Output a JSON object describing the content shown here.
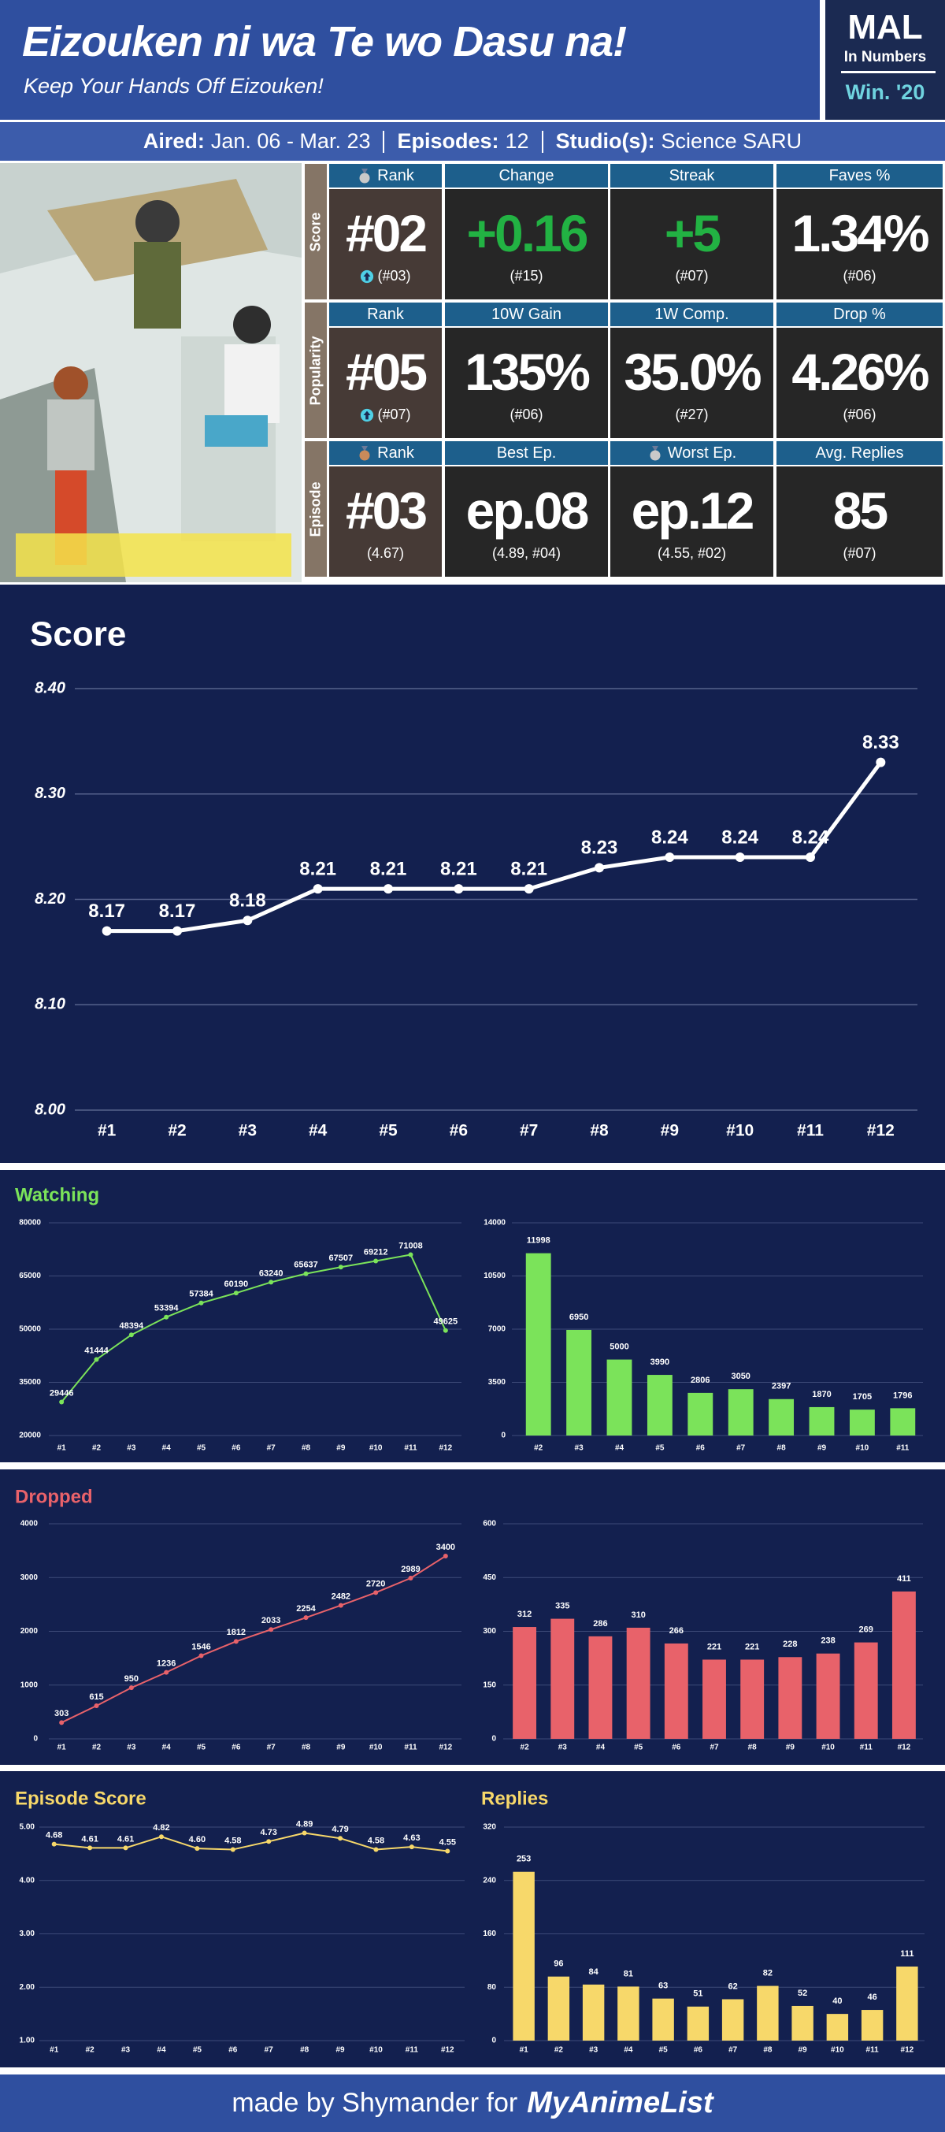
{
  "header": {
    "title": "Eizouken ni wa Te wo Dasu na!",
    "subtitle": "Keep Your Hands Off Eizouken!",
    "logo": {
      "line1": "MAL",
      "line2": "In Numbers",
      "season": "Win. '20"
    }
  },
  "info": [
    {
      "label": "Aired:",
      "value": "Jan. 06 - Mar. 23"
    },
    {
      "label": "Episodes:",
      "value": "12"
    },
    {
      "label": "Studio(s):",
      "value": "Science SARU"
    }
  ],
  "stats": {
    "rows": [
      {
        "label": "Score",
        "cells": [
          {
            "header": "Rank",
            "icon": "medal-silver",
            "value": "#02",
            "sub": "(#03)",
            "sub_icon": "arrow-up"
          },
          {
            "header": "Change",
            "value": "+0.16",
            "sub": "(#15)",
            "color": "#22b243"
          },
          {
            "header": "Streak",
            "value": "+5",
            "sub": "(#07)",
            "color": "#22b243"
          },
          {
            "header": "Faves %",
            "value": "1.34%",
            "sub": "(#06)"
          }
        ]
      },
      {
        "label": "Popularity",
        "cells": [
          {
            "header": "Rank",
            "value": "#05",
            "sub": "(#07)",
            "sub_icon": "arrow-up"
          },
          {
            "header": "10W Gain",
            "value": "135%",
            "sub": "(#06)"
          },
          {
            "header": "1W Comp.",
            "value": "35.0%",
            "sub": "(#27)"
          },
          {
            "header": "Drop %",
            "value": "4.26%",
            "sub": "(#06)"
          }
        ]
      },
      {
        "label": "Episode",
        "cells": [
          {
            "header": "Rank",
            "icon": "medal-bronze",
            "value": "#03",
            "sub": "(4.67)"
          },
          {
            "header": "Best Ep.",
            "value": "ep.08",
            "sub": "(4.89, #04)"
          },
          {
            "header": "Worst Ep.",
            "icon": "medal-silver",
            "value": "ep.12",
            "sub": "(4.55, #02)"
          },
          {
            "header": "Avg. Replies",
            "value": "85",
            "sub": "(#07)"
          }
        ]
      }
    ]
  },
  "chart_data": [
    {
      "type": "line",
      "title": "Score",
      "color": "#ffffff",
      "grid": true,
      "categories": [
        "#1",
        "#2",
        "#3",
        "#4",
        "#5",
        "#6",
        "#7",
        "#8",
        "#9",
        "#10",
        "#11",
        "#12"
      ],
      "values": [
        8.17,
        8.17,
        8.18,
        8.21,
        8.21,
        8.21,
        8.21,
        8.23,
        8.24,
        8.24,
        8.24,
        8.33
      ],
      "ylim": [
        8.0,
        8.4
      ],
      "yticks": [
        {
          "value": 8.0,
          "label": "8.00"
        },
        {
          "value": 8.1,
          "label": "8.10"
        },
        {
          "value": 8.2,
          "label": "8.20"
        },
        {
          "value": 8.3,
          "label": "8.30"
        },
        {
          "value": 8.4,
          "label": "8.40"
        }
      ]
    },
    {
      "type": "line",
      "title": "Watching",
      "color": "#7be35a",
      "grid": true,
      "categories": [
        "#1",
        "#2",
        "#3",
        "#4",
        "#5",
        "#6",
        "#7",
        "#8",
        "#9",
        "#10",
        "#11",
        "#12"
      ],
      "values": [
        29446,
        41444,
        48394,
        53394,
        57384,
        60190,
        63240,
        65637,
        67507,
        69212,
        71008,
        49625
      ],
      "ylim": [
        20000,
        80000
      ],
      "yticks": [
        20000,
        35000,
        50000,
        65000,
        80000
      ]
    },
    {
      "type": "bar",
      "color": "#7be35a",
      "grid": true,
      "categories": [
        "#2",
        "#3",
        "#4",
        "#5",
        "#6",
        "#7",
        "#8",
        "#9",
        "#10",
        "#11"
      ],
      "values": [
        11998,
        6950,
        5000,
        3990,
        2806,
        3050,
        2397,
        1870,
        1705,
        1796
      ],
      "ylim": [
        0,
        14000
      ],
      "yticks": [
        0,
        3500,
        7000,
        10500,
        14000
      ]
    },
    {
      "type": "line",
      "title": "Dropped",
      "color": "#e8626a",
      "grid": true,
      "categories": [
        "#1",
        "#2",
        "#3",
        "#4",
        "#5",
        "#6",
        "#7",
        "#8",
        "#9",
        "#10",
        "#11",
        "#12"
      ],
      "values": [
        303,
        615,
        950,
        1236,
        1546,
        1812,
        2033,
        2254,
        2482,
        2720,
        2989,
        3400
      ],
      "ylim": [
        0,
        4000
      ],
      "yticks": [
        0,
        1000,
        2000,
        3000,
        4000
      ]
    },
    {
      "type": "bar",
      "color": "#e8626a",
      "grid": true,
      "categories": [
        "#2",
        "#3",
        "#4",
        "#5",
        "#6",
        "#7",
        "#8",
        "#9",
        "#10",
        "#11",
        "#12"
      ],
      "values": [
        312,
        335,
        286,
        310,
        266,
        221,
        221,
        228,
        238,
        269,
        411
      ],
      "ylim": [
        0,
        600
      ],
      "yticks": [
        0,
        150,
        300,
        450,
        600
      ]
    },
    {
      "type": "line",
      "title": "Episode Score",
      "color": "#f7d86a",
      "grid": true,
      "categories": [
        "#1",
        "#2",
        "#3",
        "#4",
        "#5",
        "#6",
        "#7",
        "#8",
        "#9",
        "#10",
        "#11",
        "#12"
      ],
      "values": [
        4.68,
        4.61,
        4.61,
        4.82,
        4.6,
        4.58,
        4.73,
        4.89,
        4.79,
        4.58,
        4.63,
        4.55
      ],
      "value_labels": [
        "4.68",
        "4.61",
        "4.61",
        "4.82",
        "4.60",
        "4.58",
        "4.73",
        "4.89",
        "4.79",
        "4.58",
        "4.63",
        "4.55"
      ],
      "ylim": [
        1,
        5
      ],
      "yticks": [
        {
          "value": 1,
          "label": "1.00"
        },
        {
          "value": 2,
          "label": "2.00"
        },
        {
          "value": 3,
          "label": "3.00"
        },
        {
          "value": 4,
          "label": "4.00"
        },
        {
          "value": 5,
          "label": "5.00"
        }
      ]
    },
    {
      "type": "bar",
      "title": "Replies",
      "color": "#f7d86a",
      "grid": true,
      "categories": [
        "#1",
        "#2",
        "#3",
        "#4",
        "#5",
        "#6",
        "#7",
        "#8",
        "#9",
        "#10",
        "#11",
        "#12"
      ],
      "values": [
        253,
        96,
        84,
        81,
        63,
        51,
        62,
        82,
        52,
        40,
        46,
        111
      ],
      "ylim": [
        0,
        320
      ],
      "yticks": [
        0,
        80,
        160,
        240,
        320
      ]
    }
  ],
  "footer": {
    "text": "made by Shymander for",
    "brand": "MyAnimeList"
  }
}
